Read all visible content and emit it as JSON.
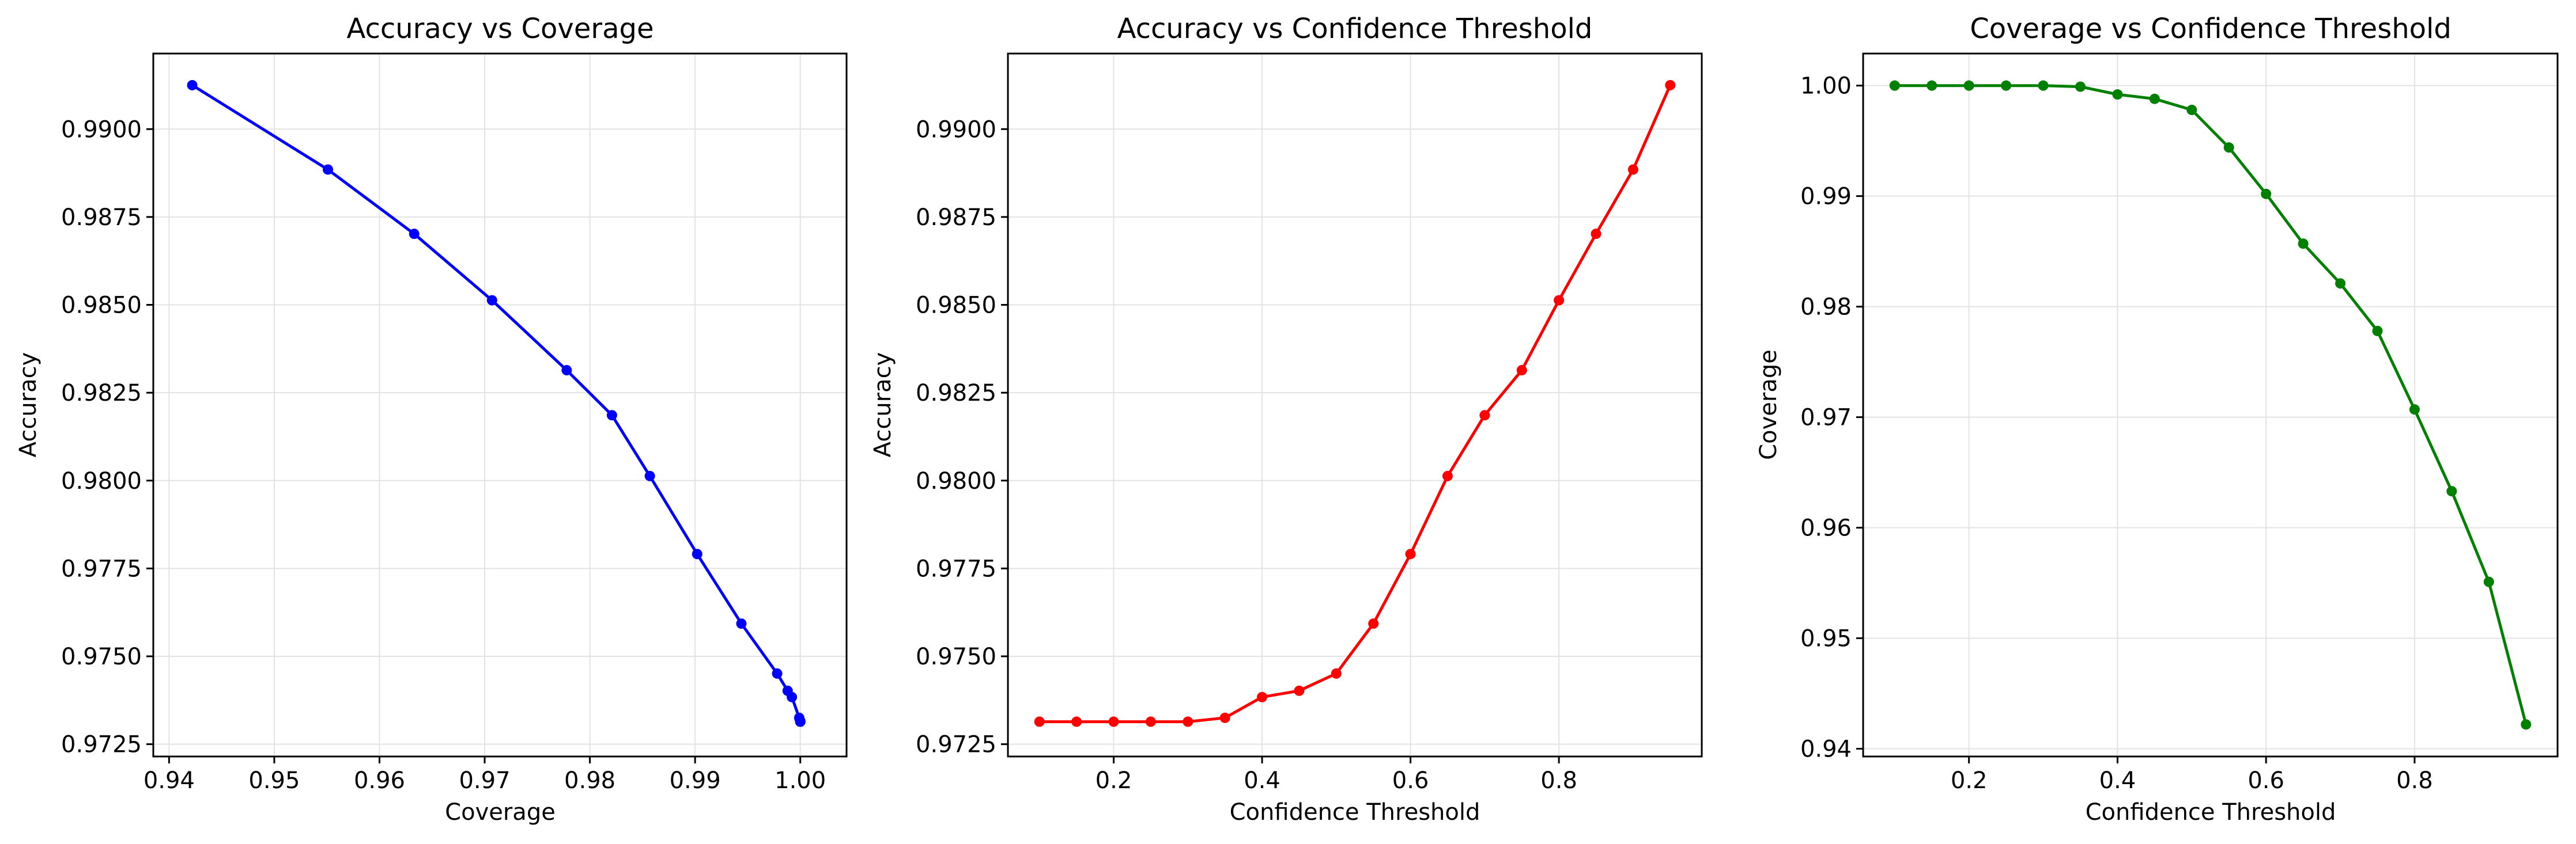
{
  "chart_data": [
    {
      "type": "line",
      "title": "Accuracy vs Coverage",
      "xlabel": "Coverage",
      "ylabel": "Accuracy",
      "xlim": [
        0.9385,
        1.0044
      ],
      "ylim": [
        0.97215,
        0.99215
      ],
      "xticks": [
        0.94,
        0.95,
        0.96,
        0.97,
        0.98,
        0.99,
        1.0
      ],
      "xtick_labels": [
        "0.94",
        "0.95",
        "0.96",
        "0.97",
        "0.98",
        "0.99",
        "1.00"
      ],
      "yticks": [
        0.9725,
        0.975,
        0.9775,
        0.98,
        0.9825,
        0.985,
        0.9875,
        0.99
      ],
      "ytick_labels": [
        "0.9725",
        "0.9750",
        "0.9775",
        "0.9800",
        "0.9825",
        "0.9850",
        "0.9875",
        "0.9900"
      ],
      "grid": true,
      "color": "#0000ff",
      "x": [
        0.9422,
        0.9551,
        0.9633,
        0.9707,
        0.9778,
        0.9821,
        0.9857,
        0.9902,
        0.9944,
        0.9978,
        0.9988,
        0.9992,
        0.9999,
        1.0,
        1.0,
        1.0,
        1.0,
        1.0
      ],
      "y": [
        0.99125,
        0.98885,
        0.98702,
        0.98513,
        0.98314,
        0.98186,
        0.98013,
        0.97791,
        0.97593,
        0.97451,
        0.97402,
        0.97384,
        0.97325,
        0.97316,
        0.97314,
        0.97314,
        0.97314,
        0.97314
      ]
    },
    {
      "type": "line",
      "title": "Accuracy vs Confidence Threshold",
      "xlabel": "Confidence Threshold",
      "ylabel": "Accuracy",
      "xlim": [
        0.0575,
        0.9925
      ],
      "ylim": [
        0.97215,
        0.99215
      ],
      "xticks": [
        0.2,
        0.4,
        0.6,
        0.8
      ],
      "xtick_labels": [
        "0.2",
        "0.4",
        "0.6",
        "0.8"
      ],
      "yticks": [
        0.9725,
        0.975,
        0.9775,
        0.98,
        0.9825,
        0.985,
        0.9875,
        0.99
      ],
      "ytick_labels": [
        "0.9725",
        "0.9750",
        "0.9775",
        "0.9800",
        "0.9825",
        "0.9850",
        "0.9875",
        "0.9900"
      ],
      "grid": true,
      "color": "#ff0000",
      "x": [
        0.1,
        0.15,
        0.2,
        0.25,
        0.3,
        0.35,
        0.4,
        0.45,
        0.5,
        0.55,
        0.6,
        0.65,
        0.7,
        0.75,
        0.8,
        0.85,
        0.9,
        0.95
      ],
      "y": [
        0.97314,
        0.97314,
        0.97314,
        0.97314,
        0.97314,
        0.97325,
        0.97384,
        0.97402,
        0.97451,
        0.97593,
        0.97791,
        0.98013,
        0.98186,
        0.98314,
        0.98513,
        0.98702,
        0.98885,
        0.99125
      ]
    },
    {
      "type": "line",
      "title": "Coverage vs Confidence Threshold",
      "xlabel": "Confidence Threshold",
      "ylabel": "Coverage",
      "xlim": [
        0.0575,
        0.9925
      ],
      "ylim": [
        0.9393,
        1.0029
      ],
      "xticks": [
        0.2,
        0.4,
        0.6,
        0.8
      ],
      "xtick_labels": [
        "0.2",
        "0.4",
        "0.6",
        "0.8"
      ],
      "yticks": [
        0.94,
        0.95,
        0.96,
        0.97,
        0.98,
        0.99,
        1.0
      ],
      "ytick_labels": [
        "0.94",
        "0.95",
        "0.96",
        "0.97",
        "0.98",
        "0.99",
        "1.00"
      ],
      "grid": true,
      "color": "#008000",
      "x": [
        0.1,
        0.15,
        0.2,
        0.25,
        0.3,
        0.35,
        0.4,
        0.45,
        0.5,
        0.55,
        0.6,
        0.65,
        0.7,
        0.75,
        0.8,
        0.85,
        0.9,
        0.95
      ],
      "y": [
        1.0,
        1.0,
        1.0,
        1.0,
        1.0,
        0.9999,
        0.9992,
        0.9988,
        0.9978,
        0.9944,
        0.9902,
        0.9857,
        0.9821,
        0.9778,
        0.9707,
        0.9633,
        0.9551,
        0.9422
      ]
    }
  ]
}
